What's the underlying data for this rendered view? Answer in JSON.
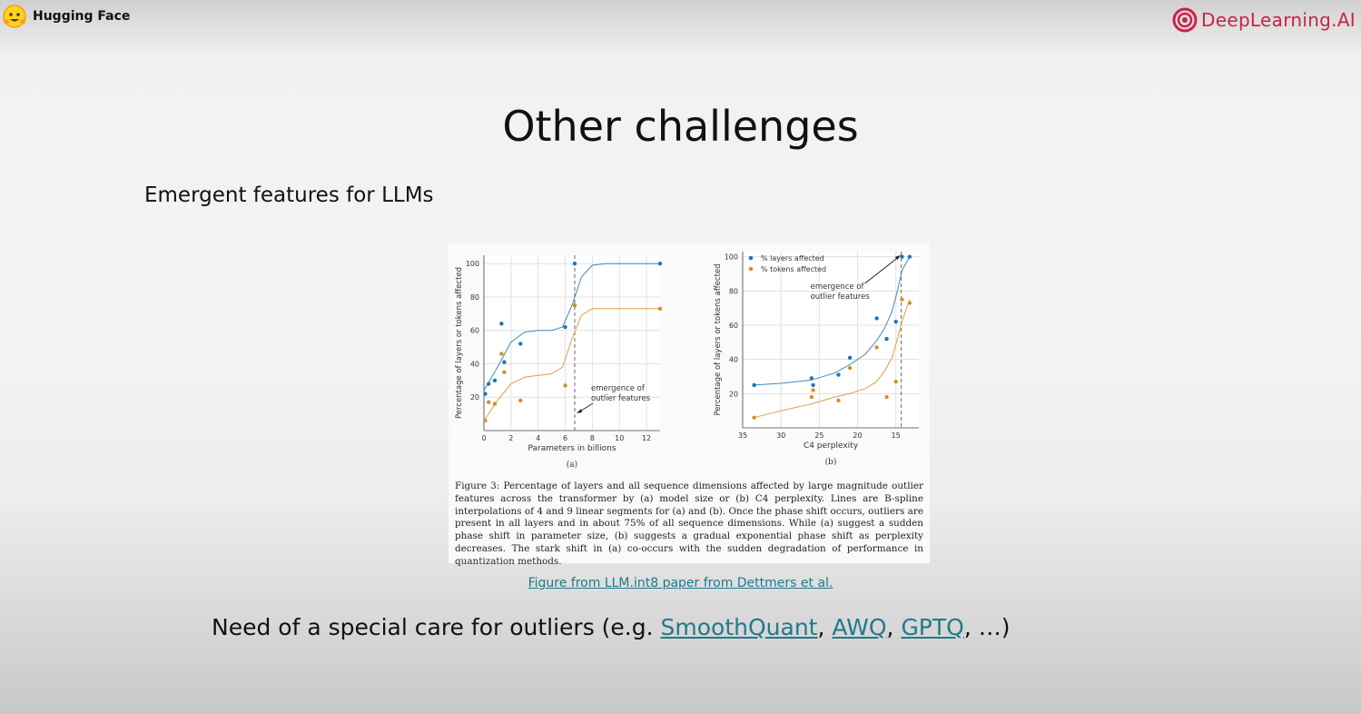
{
  "branding": {
    "left_name": "Hugging Face",
    "right_name": "DeepLearning.AI",
    "right_color": "#c9234a"
  },
  "slide": {
    "title": "Other challenges",
    "subtitle": "Emergent features for LLMs",
    "caption": "Figure 3: Percentage of layers and all sequence dimensions affected by large magnitude outlier features across the transformer by (a) model size or (b) C4 perplexity. Lines are B-spline interpolations of 4 and 9 linear segments for (a) and (b). Once the phase shift occurs, outliers are present in all layers and in about 75% of all sequence dimensions. While (a) suggest a sudden phase shift in parameter size, (b) suggests a gradual exponential phase shift as perplexity decreases. The stark shift in (a) co-occurs with the sudden degradation of performance in quantization methods.",
    "source_link": "Figure from LLM.int8 paper from Dettmers et al.",
    "bottom_prefix": "Need of a special care for outliers (e.g. ",
    "bottom_links": [
      "SmoothQuant",
      "AWQ",
      "GPTQ"
    ],
    "bottom_sep": ", ",
    "bottom_suffix": ", …)",
    "link_color": "#1f7a8c"
  },
  "chart_data": [
    {
      "type": "scatter",
      "panel_label": "(a)",
      "xlabel": "Parameters in billions",
      "ylabel": "Percentage of layers or tokens affected",
      "xlim": [
        0,
        13
      ],
      "ylim": [
        0,
        105
      ],
      "xticks": [
        0,
        2,
        4,
        6,
        8,
        10,
        12
      ],
      "yticks": [
        20,
        40,
        60,
        80,
        100
      ],
      "grid": true,
      "annotation": [
        "emergence of",
        "outlier features"
      ],
      "threshold_x": 6.7,
      "series": [
        {
          "name": "% layers affected",
          "color": "#1f77b4",
          "points": [
            [
              0.1,
              22
            ],
            [
              0.35,
              28
            ],
            [
              0.8,
              30
            ],
            [
              1.3,
              64
            ],
            [
              1.5,
              41
            ],
            [
              2.7,
              52
            ],
            [
              6.0,
              62
            ],
            [
              6.7,
              100
            ],
            [
              13,
              100
            ]
          ],
          "curve": [
            [
              0,
              24
            ],
            [
              1,
              38
            ],
            [
              2,
              53
            ],
            [
              3,
              59
            ],
            [
              4,
              60
            ],
            [
              5,
              60
            ],
            [
              5.8,
              62
            ],
            [
              6.5,
              75
            ],
            [
              7.2,
              92
            ],
            [
              8,
              99
            ],
            [
              9,
              100
            ],
            [
              13,
              100
            ]
          ]
        },
        {
          "name": "% tokens affected",
          "color": "#d4902a",
          "points": [
            [
              0.1,
              6
            ],
            [
              0.35,
              17
            ],
            [
              0.8,
              16
            ],
            [
              1.3,
              46
            ],
            [
              1.5,
              35
            ],
            [
              2.7,
              18
            ],
            [
              6.0,
              27
            ],
            [
              6.7,
              75
            ],
            [
              13,
              73
            ]
          ],
          "curve": [
            [
              0,
              6
            ],
            [
              1,
              18
            ],
            [
              2,
              28
            ],
            [
              3,
              32
            ],
            [
              4,
              33
            ],
            [
              5,
              34
            ],
            [
              5.8,
              38
            ],
            [
              6.5,
              55
            ],
            [
              7.2,
              69
            ],
            [
              8,
              73
            ],
            [
              9,
              73
            ],
            [
              13,
              73
            ]
          ]
        }
      ]
    },
    {
      "type": "scatter",
      "panel_label": "(b)",
      "xlabel": "C4 perplexity",
      "ylabel": "Percentage of layers or tokens affected",
      "xlim": [
        35,
        12
      ],
      "ylim": [
        0,
        103
      ],
      "xticks": [
        35,
        30,
        25,
        20,
        15
      ],
      "yticks": [
        20,
        40,
        60,
        80,
        100
      ],
      "grid": true,
      "annotation": [
        "emergence of",
        "outlier features"
      ],
      "threshold_x": 14.3,
      "legend_position": "top-left",
      "series": [
        {
          "name": "% layers affected",
          "color": "#1f77b4",
          "points": [
            [
              33.5,
              25
            ],
            [
              26,
              29
            ],
            [
              25.8,
              25
            ],
            [
              22.5,
              31
            ],
            [
              21,
              41
            ],
            [
              17.5,
              64
            ],
            [
              16.2,
              52
            ],
            [
              15,
              62
            ],
            [
              14.2,
              100
            ],
            [
              13.2,
              100
            ]
          ],
          "curve": [
            [
              33.5,
              25
            ],
            [
              30,
              26
            ],
            [
              26,
              28
            ],
            [
              23,
              32
            ],
            [
              21,
              37
            ],
            [
              19,
              43
            ],
            [
              17.5,
              51
            ],
            [
              16.5,
              58
            ],
            [
              15.5,
              68
            ],
            [
              14.8,
              80
            ],
            [
              14.2,
              92
            ],
            [
              13.2,
              100
            ]
          ]
        },
        {
          "name": "% tokens affected",
          "color": "#d4902a",
          "points": [
            [
              33.5,
              6
            ],
            [
              26,
              18
            ],
            [
              25.8,
              22
            ],
            [
              22.5,
              16
            ],
            [
              21,
              35
            ],
            [
              17.5,
              47
            ],
            [
              16.2,
              18
            ],
            [
              15,
              27
            ],
            [
              14.2,
              75
            ],
            [
              13.2,
              73
            ]
          ],
          "curve": [
            [
              33.5,
              6
            ],
            [
              30,
              10
            ],
            [
              26,
              14
            ],
            [
              23,
              18
            ],
            [
              21,
              20
            ],
            [
              19,
              23
            ],
            [
              17.5,
              27
            ],
            [
              16.5,
              33
            ],
            [
              15.5,
              41
            ],
            [
              14.8,
              52
            ],
            [
              14.2,
              62
            ],
            [
              13.2,
              75
            ]
          ]
        }
      ]
    }
  ]
}
